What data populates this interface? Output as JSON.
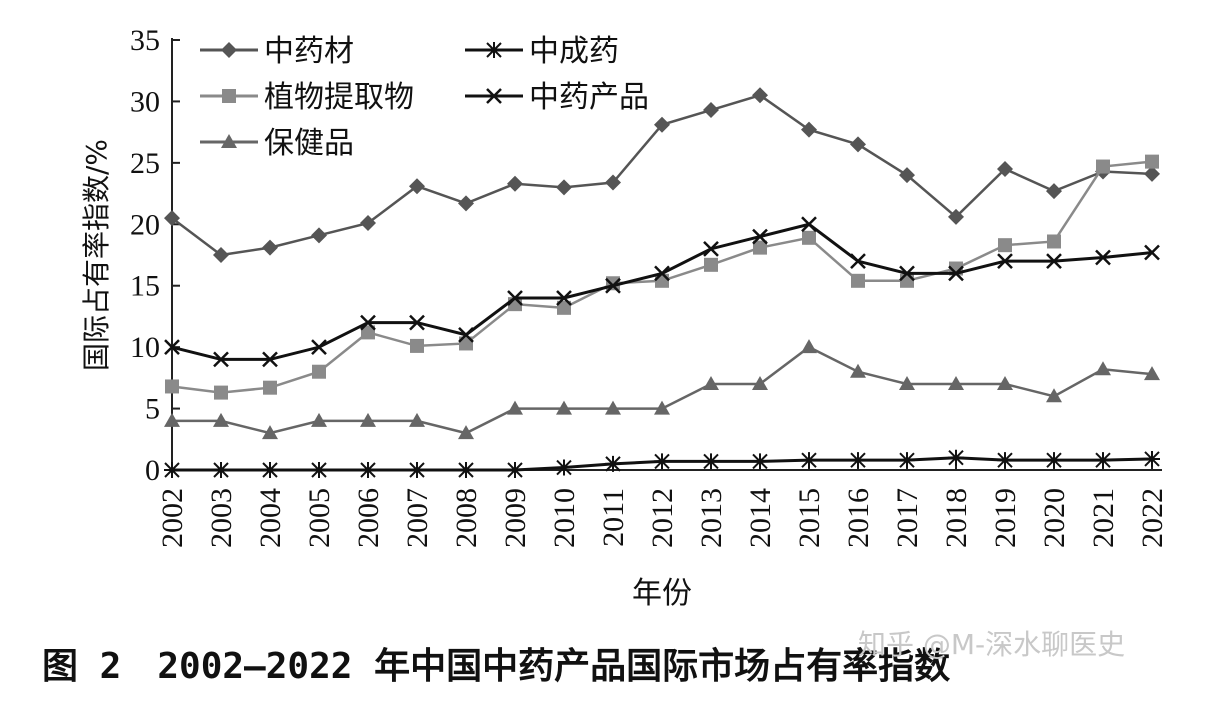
{
  "chart_data": {
    "type": "line",
    "y_label": "国际占有率指数/%",
    "x_label": "年份",
    "caption": "图 2　2002—2022 年中国中药产品国际市场占有率指数",
    "watermark": "知乎 @M-深水聊医史",
    "categories": [
      "2002",
      "2003",
      "2004",
      "2005",
      "2006",
      "2007",
      "2008",
      "2009",
      "2010",
      "2011",
      "2012",
      "2013",
      "2014",
      "2015",
      "2016",
      "2017",
      "2018",
      "2019",
      "2020",
      "2021",
      "2022"
    ],
    "ylim": [
      0,
      35
    ],
    "yticks": [
      0,
      5,
      10,
      15,
      20,
      25,
      30,
      35
    ],
    "series": [
      {
        "name": "中药材",
        "color": "#555555",
        "marker": "diamond",
        "values": [
          20.5,
          17.5,
          18.1,
          19.1,
          20.1,
          23.1,
          21.7,
          23.3,
          23.0,
          23.4,
          28.1,
          29.3,
          30.5,
          27.7,
          26.5,
          24.0,
          20.6,
          24.5,
          22.7,
          24.3,
          24.1
        ]
      },
      {
        "name": "中成药",
        "color": "#111111",
        "marker": "asterisk",
        "values": [
          0,
          0,
          0,
          0,
          0,
          0,
          0,
          0,
          0.2,
          0.5,
          0.7,
          0.7,
          0.7,
          0.8,
          0.8,
          0.8,
          1.0,
          0.8,
          0.8,
          0.8,
          0.9
        ]
      },
      {
        "name": "植物提取物",
        "color": "#8a8a8a",
        "marker": "square",
        "values": [
          6.8,
          6.3,
          6.7,
          8.0,
          11.2,
          10.1,
          10.3,
          13.5,
          13.2,
          15.2,
          15.4,
          16.7,
          18.1,
          18.9,
          15.4,
          15.4,
          16.4,
          18.3,
          18.6,
          24.7,
          25.1
        ]
      },
      {
        "name": "中药产品",
        "color": "#111111",
        "marker": "x",
        "values": [
          10,
          9,
          9,
          10,
          12,
          12,
          11,
          14,
          14,
          15,
          16,
          18,
          19,
          20,
          17,
          16,
          16,
          17,
          17,
          17.3,
          17.7
        ]
      },
      {
        "name": "保健品",
        "color": "#666666",
        "marker": "triangle",
        "values": [
          4,
          4,
          3,
          4,
          4,
          4,
          3,
          5,
          5,
          5,
          5,
          7,
          7,
          10,
          8,
          7,
          7,
          7,
          6,
          8.2,
          7.8
        ]
      }
    ]
  }
}
